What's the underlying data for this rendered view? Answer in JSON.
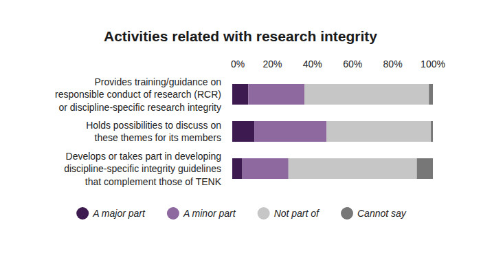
{
  "chart_data": {
    "type": "bar",
    "orientation": "horizontal",
    "stacked": true,
    "title": "Activities related with research integrity",
    "categories": [
      "Provides training/guidance on\nresponsible conduct of research (RCR)\nor discipline-specific research integrity",
      "Holds possibilities to discuss on\nthese themes for its members",
      "Develops or takes part in developing\ndiscipline-specific integrity guidelines\nthat complement those of TENK"
    ],
    "series": [
      {
        "name": "A major part",
        "color": "#3d1a4f",
        "values": [
          8,
          11,
          5
        ]
      },
      {
        "name": "A minor part",
        "color": "#8e699f",
        "values": [
          28,
          36,
          23
        ]
      },
      {
        "name": "Not part of",
        "color": "#c6c6c6",
        "values": [
          62,
          52,
          64
        ]
      },
      {
        "name": "Cannot say",
        "color": "#777777",
        "values": [
          2,
          1,
          8
        ]
      }
    ],
    "xlim": [
      0,
      100
    ],
    "xticks": [
      {
        "value": 0,
        "label": "0%"
      },
      {
        "value": 20,
        "label": "20%"
      },
      {
        "value": 40,
        "label": "40%"
      },
      {
        "value": 60,
        "label": "60%"
      },
      {
        "value": 80,
        "label": "80%"
      },
      {
        "value": 100,
        "label": "100%"
      }
    ],
    "grid": false,
    "legend": "bottom"
  }
}
